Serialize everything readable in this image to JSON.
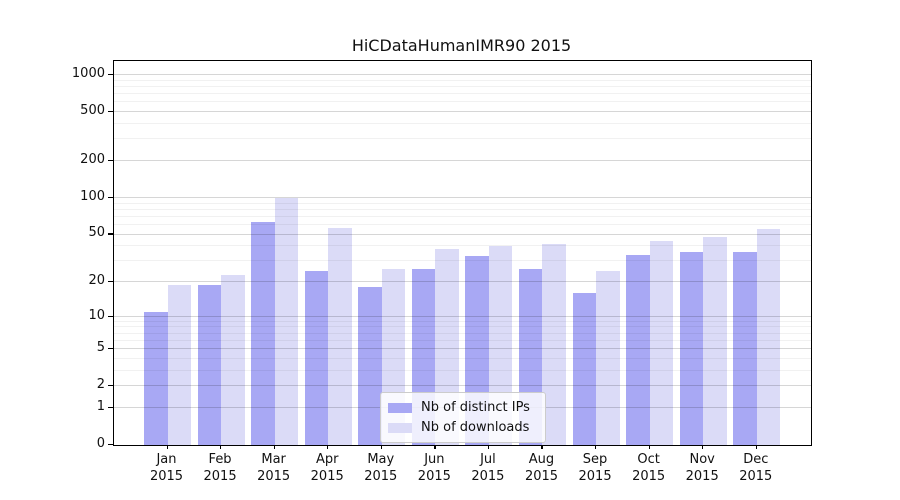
{
  "title": "HiCDataHumanIMR90 2015",
  "chart_data": {
    "type": "bar",
    "title": "HiCDataHumanIMR90 2015",
    "categories": [
      "Jan 2015",
      "Feb 2015",
      "Mar 2015",
      "Apr 2015",
      "May 2015",
      "Jun 2015",
      "Jul 2015",
      "Aug 2015",
      "Sep 2015",
      "Oct 2015",
      "Nov 2015",
      "Dec 2015"
    ],
    "series": [
      {
        "name": "Nb of distinct IPs",
        "color": "#a8a8f4",
        "values": [
          11,
          19,
          63,
          25,
          18,
          26,
          33,
          26,
          16,
          34,
          36,
          36
        ]
      },
      {
        "name": "Nb of downloads",
        "color": "#dbdbf7",
        "values": [
          19,
          23,
          100,
          57,
          26,
          38,
          40,
          42,
          25,
          44,
          48,
          55
        ]
      }
    ],
    "xlabel": "",
    "ylabel": "",
    "y_scale": "log(1+x)",
    "y_ticks": [
      0,
      1,
      2,
      5,
      10,
      20,
      50,
      100,
      200,
      500,
      1000
    ],
    "y_minor_gridlines": [
      3,
      4,
      6,
      7,
      8,
      9,
      30,
      40,
      60,
      70,
      80,
      90,
      300,
      400,
      600,
      700,
      800,
      900
    ],
    "ylim": [
      0,
      1300
    ],
    "grid": "on",
    "legend_position": "bottom-center-inside"
  },
  "legend": {
    "item1": "Nb of distinct IPs",
    "item2": "Nb of downloads"
  }
}
